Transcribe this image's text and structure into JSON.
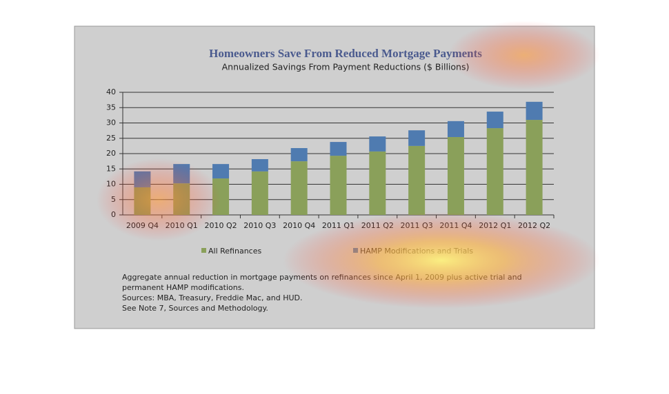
{
  "chart_data": {
    "type": "bar",
    "stacked": true,
    "title": "Homeowners Save From Reduced Mortgage Payments",
    "subtitle": "Annualized Savings From Payment Reductions ($ Billions)",
    "categories": [
      "2009 Q4",
      "2010 Q1",
      "2010 Q2",
      "2010 Q3",
      "2010 Q4",
      "2011 Q1",
      "2011 Q2",
      "2011 Q3",
      "2011 Q4",
      "2012 Q1",
      "2012 Q2"
    ],
    "series": [
      {
        "name": "All Refinances",
        "color": "#8aa05a",
        "values": [
          9.0,
          10.3,
          11.9,
          14.2,
          17.5,
          19.3,
          20.7,
          22.5,
          25.4,
          28.3,
          31.0
        ]
      },
      {
        "name": "HAMP Modifications and Trials",
        "color": "#4f7bb0",
        "values": [
          5.2,
          6.3,
          4.7,
          4.0,
          4.3,
          4.5,
          4.9,
          5.1,
          5.2,
          5.4,
          5.9
        ]
      }
    ],
    "ylim": [
      0,
      40
    ],
    "yticks": [
      0,
      5,
      10,
      15,
      20,
      25,
      30,
      35,
      40
    ],
    "grid": true,
    "notes": [
      "Aggregate annual reduction in mortgage payments on refinances since April 1, 2009 plus active trial and",
      "permanent HAMP modifications.",
      "Sources:  MBA, Treasury, Freddie Mac, and HUD.",
      "See Note 7, Sources and Methodology."
    ]
  }
}
